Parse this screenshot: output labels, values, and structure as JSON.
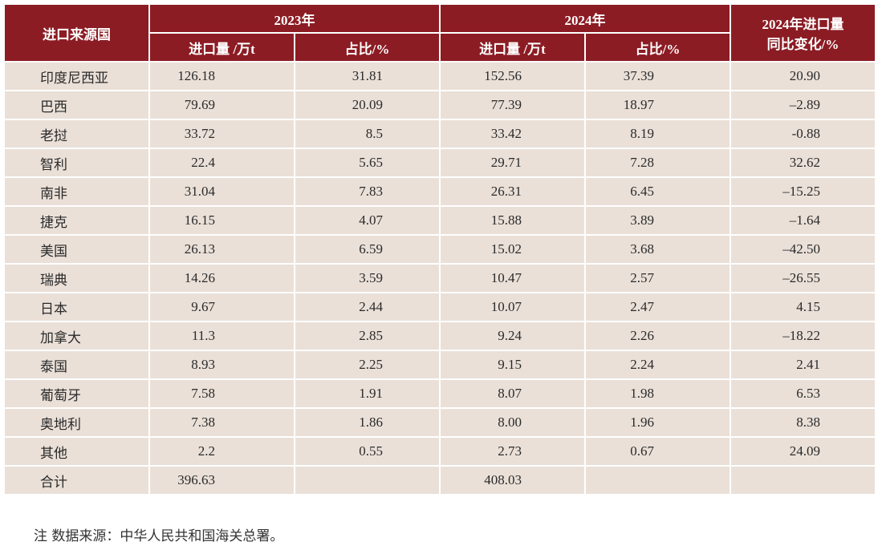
{
  "header": {
    "country": "进口来源国",
    "year_2023": "2023年",
    "year_2024": "2024年",
    "change_line1": "2024年进口量",
    "change_line2": "同比变化/%",
    "volume_2023": "进口量 /万t",
    "share_2023": "占比/%",
    "volume_2024": "进口量 /万t",
    "share_2024": "占比/%"
  },
  "rows": [
    {
      "country": "印度尼西亚",
      "v2023": "126.18",
      "s2023": "31.81",
      "v2024": "152.56",
      "s2024": "37.39",
      "change": "20.90"
    },
    {
      "country": "巴西",
      "v2023": "79.69",
      "s2023": "20.09",
      "v2024": "77.39",
      "s2024": "18.97",
      "change": "–2.89"
    },
    {
      "country": "老挝",
      "v2023": "33.72",
      "s2023": "8.5",
      "v2024": "33.42",
      "s2024": "8.19",
      "change": "-0.88"
    },
    {
      "country": "智利",
      "v2023": "22.4",
      "s2023": "5.65",
      "v2024": "29.71",
      "s2024": "7.28",
      "change": "32.62"
    },
    {
      "country": "南非",
      "v2023": "31.04",
      "s2023": "7.83",
      "v2024": "26.31",
      "s2024": "6.45",
      "change": "–15.25"
    },
    {
      "country": "捷克",
      "v2023": "16.15",
      "s2023": "4.07",
      "v2024": "15.88",
      "s2024": "3.89",
      "change": "–1.64"
    },
    {
      "country": "美国",
      "v2023": "26.13",
      "s2023": "6.59",
      "v2024": "15.02",
      "s2024": "3.68",
      "change": "–42.50"
    },
    {
      "country": "瑞典",
      "v2023": "14.26",
      "s2023": "3.59",
      "v2024": "10.47",
      "s2024": "2.57",
      "change": "–26.55"
    },
    {
      "country": "日本",
      "v2023": "9.67",
      "s2023": "2.44",
      "v2024": "10.07",
      "s2024": "2.47",
      "change": "4.15"
    },
    {
      "country": "加拿大",
      "v2023": "11.3",
      "s2023": "2.85",
      "v2024": "9.24",
      "s2024": "2.26",
      "change": "–18.22"
    },
    {
      "country": "泰国",
      "v2023": "8.93",
      "s2023": "2.25",
      "v2024": "9.15",
      "s2024": "2.24",
      "change": "2.41"
    },
    {
      "country": "葡萄牙",
      "v2023": "7.58",
      "s2023": "1.91",
      "v2024": "8.07",
      "s2024": "1.98",
      "change": "6.53"
    },
    {
      "country": "奥地利",
      "v2023": "7.38",
      "s2023": "1.86",
      "v2024": "8.00",
      "s2024": "1.96",
      "change": "8.38"
    },
    {
      "country": "其他",
      "v2023": "2.2",
      "s2023": "0.55",
      "v2024": "2.73",
      "s2024": "0.67",
      "change": "24.09"
    },
    {
      "country": "合计",
      "v2023": "396.63",
      "s2023": "",
      "v2024": "408.03",
      "s2024": "",
      "change": ""
    }
  ],
  "note": "注  数据来源：中华人民共和国海关总署。",
  "colors": {
    "header_bg": "#8c1c24",
    "row_bg": "#eae0d8"
  }
}
